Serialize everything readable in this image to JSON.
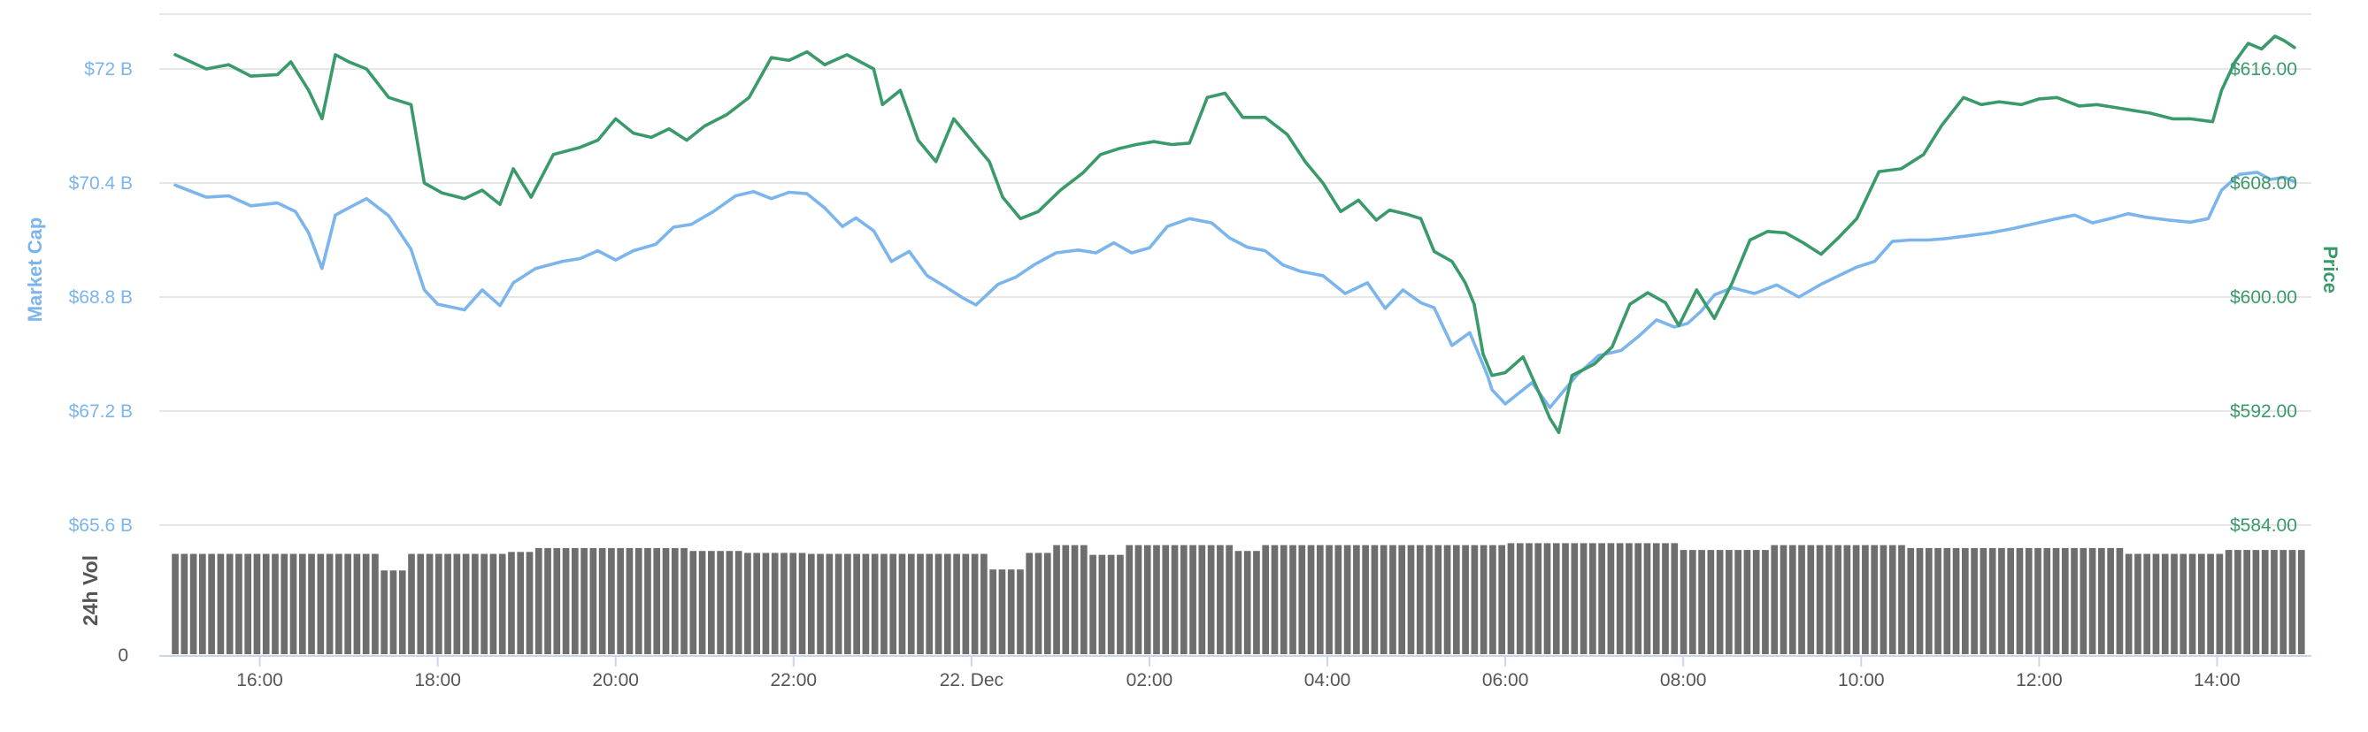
{
  "chart_data": {
    "type": "line",
    "colors": {
      "market_cap": "#7cb5ec",
      "price": "#3a9a6a",
      "volume": "#6e6e6e",
      "grid": "#e6e6e6"
    },
    "x_ticks": [
      "16:00",
      "18:00",
      "20:00",
      "22:00",
      "22. Dec",
      "02:00",
      "04:00",
      "06:00",
      "08:00",
      "10:00",
      "12:00",
      "14:00"
    ],
    "x_range_hours": [
      -1.0,
      23.0
    ],
    "y_left": {
      "label": "Market Cap",
      "ticks": [
        "$65.6 B",
        "$67.2 B",
        "$68.8 B",
        "$70.4 B",
        "$72 B"
      ],
      "range": [
        65.6,
        72.8
      ]
    },
    "y_right": {
      "label": "Price",
      "ticks": [
        "$584.00",
        "$592.00",
        "$600.00",
        "$608.00",
        "$616.00"
      ],
      "range": [
        584.0,
        620.0
      ]
    },
    "volume_axis": {
      "label": "24h Vol",
      "ticks": [
        "0"
      ],
      "level_scale": [
        0,
        1.18
      ]
    },
    "series": [
      {
        "name": "Market Cap",
        "axis": "left",
        "points": [
          [
            -0.95,
            70.37
          ],
          [
            -0.6,
            70.2
          ],
          [
            -0.35,
            70.22
          ],
          [
            -0.1,
            70.08
          ],
          [
            0.2,
            70.12
          ],
          [
            0.4,
            70.0
          ],
          [
            0.55,
            69.7
          ],
          [
            0.7,
            69.2
          ],
          [
            0.85,
            69.95
          ],
          [
            1.0,
            70.05
          ],
          [
            1.2,
            70.18
          ],
          [
            1.45,
            69.94
          ],
          [
            1.7,
            69.47
          ],
          [
            1.85,
            68.9
          ],
          [
            2.0,
            68.7
          ],
          [
            2.3,
            68.62
          ],
          [
            2.5,
            68.9
          ],
          [
            2.7,
            68.68
          ],
          [
            2.85,
            69.0
          ],
          [
            3.1,
            69.2
          ],
          [
            3.4,
            69.3
          ],
          [
            3.6,
            69.34
          ],
          [
            3.8,
            69.45
          ],
          [
            4.0,
            69.32
          ],
          [
            4.2,
            69.45
          ],
          [
            4.45,
            69.54
          ],
          [
            4.65,
            69.78
          ],
          [
            4.85,
            69.82
          ],
          [
            5.1,
            70.0
          ],
          [
            5.35,
            70.22
          ],
          [
            5.55,
            70.28
          ],
          [
            5.75,
            70.18
          ],
          [
            5.95,
            70.27
          ],
          [
            6.15,
            70.25
          ],
          [
            6.35,
            70.05
          ],
          [
            6.55,
            69.79
          ],
          [
            6.7,
            69.91
          ],
          [
            6.9,
            69.73
          ],
          [
            7.1,
            69.3
          ],
          [
            7.3,
            69.44
          ],
          [
            7.5,
            69.1
          ],
          [
            7.7,
            68.95
          ],
          [
            7.9,
            68.79
          ],
          [
            8.05,
            68.69
          ],
          [
            8.3,
            68.98
          ],
          [
            8.5,
            69.08
          ],
          [
            8.7,
            69.25
          ],
          [
            8.95,
            69.42
          ],
          [
            9.2,
            69.46
          ],
          [
            9.4,
            69.42
          ],
          [
            9.6,
            69.56
          ],
          [
            9.8,
            69.42
          ],
          [
            10.0,
            69.49
          ],
          [
            10.2,
            69.79
          ],
          [
            10.45,
            69.9
          ],
          [
            10.7,
            69.84
          ],
          [
            10.9,
            69.63
          ],
          [
            11.1,
            69.5
          ],
          [
            11.3,
            69.45
          ],
          [
            11.5,
            69.25
          ],
          [
            11.7,
            69.16
          ],
          [
            11.95,
            69.1
          ],
          [
            12.2,
            68.85
          ],
          [
            12.45,
            69.0
          ],
          [
            12.65,
            68.64
          ],
          [
            12.85,
            68.9
          ],
          [
            13.05,
            68.72
          ],
          [
            13.2,
            68.65
          ],
          [
            13.4,
            68.12
          ],
          [
            13.6,
            68.3
          ],
          [
            13.8,
            67.7
          ],
          [
            13.85,
            67.5
          ],
          [
            14.0,
            67.3
          ],
          [
            14.15,
            67.45
          ],
          [
            14.3,
            67.6
          ],
          [
            14.5,
            67.25
          ],
          [
            14.6,
            67.4
          ],
          [
            14.8,
            67.7
          ],
          [
            15.05,
            67.98
          ],
          [
            15.3,
            68.05
          ],
          [
            15.5,
            68.25
          ],
          [
            15.7,
            68.48
          ],
          [
            15.9,
            68.38
          ],
          [
            16.05,
            68.43
          ],
          [
            16.2,
            68.6
          ],
          [
            16.35,
            68.83
          ],
          [
            16.55,
            68.93
          ],
          [
            16.8,
            68.85
          ],
          [
            17.05,
            68.97
          ],
          [
            17.3,
            68.8
          ],
          [
            17.55,
            68.98
          ],
          [
            17.75,
            69.1
          ],
          [
            17.95,
            69.22
          ],
          [
            18.15,
            69.3
          ],
          [
            18.35,
            69.58
          ],
          [
            18.55,
            69.6
          ],
          [
            18.75,
            69.6
          ],
          [
            18.95,
            69.62
          ],
          [
            19.2,
            69.66
          ],
          [
            19.45,
            69.7
          ],
          [
            19.7,
            69.76
          ],
          [
            19.95,
            69.83
          ],
          [
            20.2,
            69.9
          ],
          [
            20.4,
            69.95
          ],
          [
            20.6,
            69.84
          ],
          [
            20.8,
            69.9
          ],
          [
            21.0,
            69.97
          ],
          [
            21.2,
            69.92
          ],
          [
            21.45,
            69.88
          ],
          [
            21.7,
            69.85
          ],
          [
            21.9,
            69.9
          ],
          [
            22.05,
            70.3
          ],
          [
            22.25,
            70.52
          ],
          [
            22.45,
            70.55
          ],
          [
            22.6,
            70.45
          ],
          [
            22.75,
            70.48
          ],
          [
            22.87,
            70.42
          ]
        ]
      },
      {
        "name": "Price",
        "axis": "right",
        "points": [
          [
            -0.95,
            617.0
          ],
          [
            -0.6,
            616.0
          ],
          [
            -0.35,
            616.3
          ],
          [
            -0.1,
            615.5
          ],
          [
            0.2,
            615.6
          ],
          [
            0.35,
            616.5
          ],
          [
            0.55,
            614.5
          ],
          [
            0.7,
            612.5
          ],
          [
            0.85,
            617.0
          ],
          [
            1.0,
            616.5
          ],
          [
            1.2,
            616.0
          ],
          [
            1.45,
            614.0
          ],
          [
            1.7,
            613.5
          ],
          [
            1.85,
            608.0
          ],
          [
            2.05,
            607.3
          ],
          [
            2.3,
            606.9
          ],
          [
            2.5,
            607.5
          ],
          [
            2.7,
            606.5
          ],
          [
            2.85,
            609.0
          ],
          [
            3.05,
            607.0
          ],
          [
            3.3,
            610.0
          ],
          [
            3.6,
            610.5
          ],
          [
            3.8,
            611.0
          ],
          [
            4.0,
            612.5
          ],
          [
            4.2,
            611.5
          ],
          [
            4.4,
            611.2
          ],
          [
            4.6,
            611.8
          ],
          [
            4.8,
            611.0
          ],
          [
            5.0,
            612.0
          ],
          [
            5.25,
            612.8
          ],
          [
            5.5,
            614.0
          ],
          [
            5.75,
            616.8
          ],
          [
            5.95,
            616.6
          ],
          [
            6.15,
            617.2
          ],
          [
            6.35,
            616.3
          ],
          [
            6.6,
            617.0
          ],
          [
            6.75,
            616.5
          ],
          [
            6.9,
            616.0
          ],
          [
            7.0,
            613.5
          ],
          [
            7.2,
            614.5
          ],
          [
            7.4,
            611.0
          ],
          [
            7.6,
            609.5
          ],
          [
            7.8,
            612.5
          ],
          [
            8.0,
            611.0
          ],
          [
            8.2,
            609.5
          ],
          [
            8.35,
            607.0
          ],
          [
            8.55,
            605.5
          ],
          [
            8.75,
            606.0
          ],
          [
            9.0,
            607.5
          ],
          [
            9.25,
            608.7
          ],
          [
            9.45,
            610.0
          ],
          [
            9.65,
            610.4
          ],
          [
            9.85,
            610.7
          ],
          [
            10.05,
            610.9
          ],
          [
            10.25,
            610.7
          ],
          [
            10.45,
            610.8
          ],
          [
            10.65,
            614.0
          ],
          [
            10.85,
            614.3
          ],
          [
            11.05,
            612.6
          ],
          [
            11.3,
            612.6
          ],
          [
            11.55,
            611.4
          ],
          [
            11.75,
            609.5
          ],
          [
            11.95,
            608.0
          ],
          [
            12.15,
            606.0
          ],
          [
            12.35,
            606.8
          ],
          [
            12.55,
            605.4
          ],
          [
            12.7,
            606.1
          ],
          [
            12.9,
            605.8
          ],
          [
            13.05,
            605.5
          ],
          [
            13.2,
            603.2
          ],
          [
            13.4,
            602.5
          ],
          [
            13.55,
            601.0
          ],
          [
            13.65,
            599.5
          ],
          [
            13.75,
            596.0
          ],
          [
            13.85,
            594.5
          ],
          [
            14.0,
            594.7
          ],
          [
            14.2,
            595.8
          ],
          [
            14.4,
            593.0
          ],
          [
            14.5,
            591.5
          ],
          [
            14.6,
            590.5
          ],
          [
            14.75,
            594.5
          ],
          [
            15.0,
            595.3
          ],
          [
            15.2,
            596.5
          ],
          [
            15.4,
            599.5
          ],
          [
            15.6,
            600.3
          ],
          [
            15.8,
            599.6
          ],
          [
            15.95,
            598.0
          ],
          [
            16.15,
            600.5
          ],
          [
            16.35,
            598.5
          ],
          [
            16.55,
            601.0
          ],
          [
            16.75,
            604.0
          ],
          [
            16.95,
            604.6
          ],
          [
            17.15,
            604.5
          ],
          [
            17.35,
            603.8
          ],
          [
            17.55,
            603.0
          ],
          [
            17.75,
            604.2
          ],
          [
            17.95,
            605.5
          ],
          [
            18.2,
            608.8
          ],
          [
            18.45,
            609.0
          ],
          [
            18.7,
            610.0
          ],
          [
            18.9,
            612.0
          ],
          [
            19.15,
            614.0
          ],
          [
            19.35,
            613.5
          ],
          [
            19.55,
            613.7
          ],
          [
            19.8,
            613.5
          ],
          [
            20.0,
            613.9
          ],
          [
            20.2,
            614.0
          ],
          [
            20.45,
            613.4
          ],
          [
            20.65,
            613.5
          ],
          [
            20.85,
            613.3
          ],
          [
            21.05,
            613.1
          ],
          [
            21.25,
            612.9
          ],
          [
            21.5,
            612.5
          ],
          [
            21.7,
            612.5
          ],
          [
            21.95,
            612.3
          ],
          [
            22.05,
            614.5
          ],
          [
            22.2,
            616.5
          ],
          [
            22.35,
            617.8
          ],
          [
            22.5,
            617.4
          ],
          [
            22.65,
            618.3
          ],
          [
            22.75,
            618.0
          ],
          [
            22.87,
            617.5
          ]
        ]
      }
    ],
    "volume_levels": [
      [
        -1.0,
        1.03
      ],
      [
        1.4,
        0.86
      ],
      [
        1.7,
        1.03
      ],
      [
        2.8,
        1.05
      ],
      [
        3.1,
        1.09
      ],
      [
        4.8,
        1.06
      ],
      [
        5.4,
        1.04
      ],
      [
        6.2,
        1.03
      ],
      [
        8.2,
        0.87
      ],
      [
        8.6,
        1.04
      ],
      [
        8.9,
        1.12
      ],
      [
        9.3,
        1.02
      ],
      [
        9.7,
        1.12
      ],
      [
        11.0,
        1.06
      ],
      [
        11.3,
        1.12
      ],
      [
        14.0,
        1.14
      ],
      [
        16.0,
        1.07
      ],
      [
        17.0,
        1.12
      ],
      [
        18.5,
        1.09
      ],
      [
        20.0,
        1.09
      ],
      [
        21.0,
        1.03
      ],
      [
        22.1,
        1.07
      ]
    ]
  }
}
